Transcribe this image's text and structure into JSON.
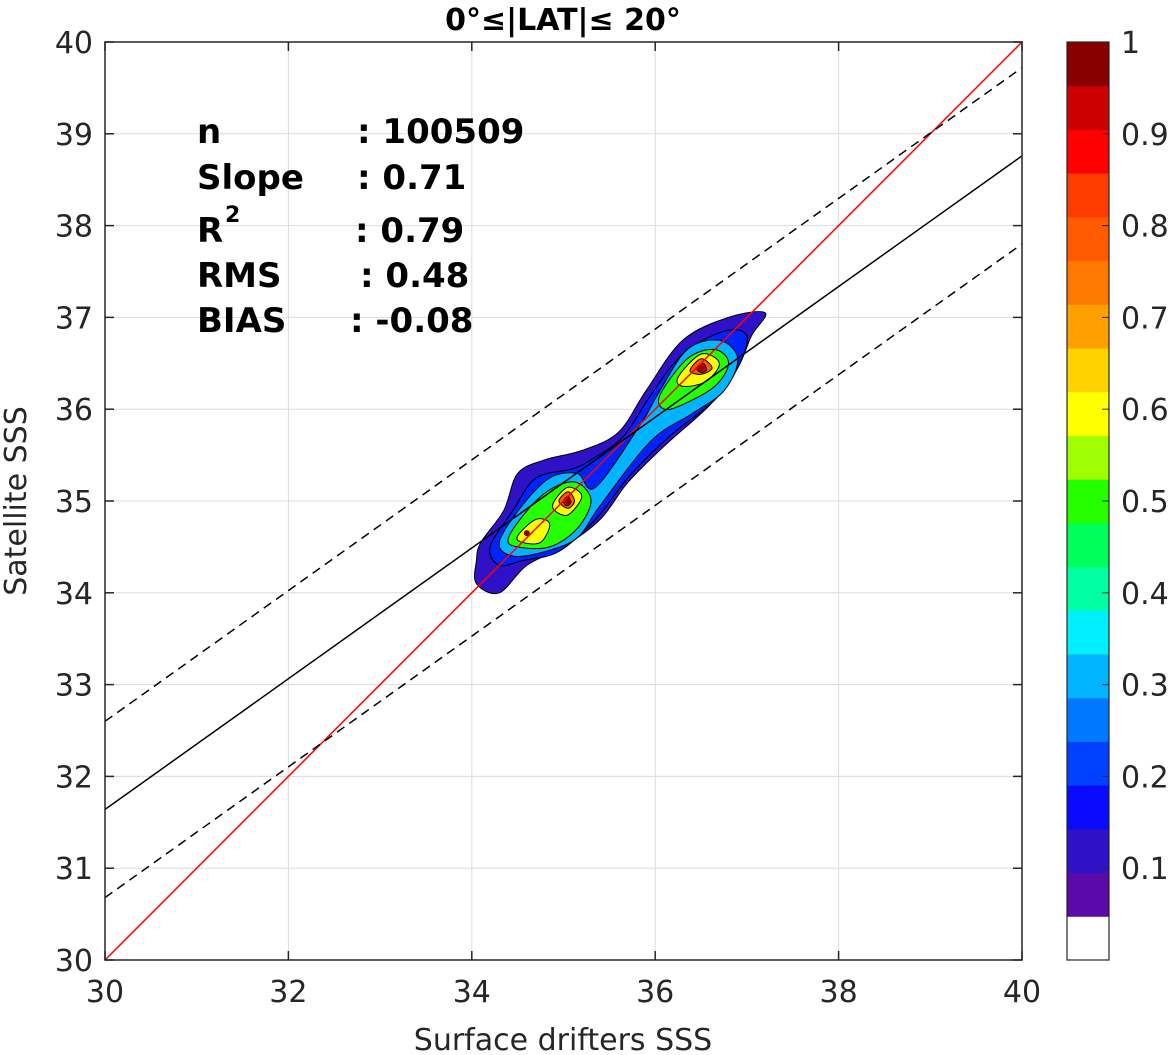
{
  "chart_data": {
    "type": "contour",
    "title": "0°≤|LAT|≤ 20°",
    "xlabel": "Surface drifters SSS",
    "ylabel": "Satellite SSS",
    "xlim": [
      30,
      40
    ],
    "ylim": [
      30,
      40
    ],
    "xticks": [
      "30",
      "32",
      "34",
      "36",
      "38",
      "40"
    ],
    "yticks": [
      "30",
      "31",
      "32",
      "33",
      "34",
      "35",
      "36",
      "37",
      "38",
      "39",
      "40"
    ],
    "grid": true,
    "stats": [
      {
        "label": "n",
        "value": ": 100509"
      },
      {
        "label": "Slope",
        "value": ": 0.71"
      },
      {
        "label": "R",
        "sup": "2",
        "value": ": 0.79"
      },
      {
        "label": "RMS",
        "value": ": 0.48"
      },
      {
        "label": "BIAS",
        "value": ": -0.08"
      }
    ],
    "lines": [
      {
        "kind": "identity",
        "color": "#ff0000",
        "style": "solid",
        "slope": 1.0,
        "intercept": 0.0
      },
      {
        "kind": "regression",
        "color": "#000000",
        "style": "solid",
        "slope": 0.712,
        "intercept": 10.28
      },
      {
        "kind": "regression-upper",
        "color": "#000000",
        "style": "dashed",
        "slope": 0.712,
        "intercept": 11.24
      },
      {
        "kind": "regression-lower",
        "color": "#000000",
        "style": "dashed",
        "slope": 0.712,
        "intercept": 9.32
      }
    ],
    "density_peaks": [
      {
        "x": 36.5,
        "y": 36.45,
        "value": 0.92
      },
      {
        "x": 35.05,
        "y": 35.0,
        "value": 0.95
      },
      {
        "x": 34.6,
        "y": 34.65,
        "value": 0.75
      }
    ],
    "contour_levels": [
      {
        "level": 0.05,
        "color": "#2f12c8",
        "path": [
          [
            34.1,
            34.55
          ],
          [
            34.35,
            34.9
          ],
          [
            34.5,
            35.3
          ],
          [
            34.8,
            35.45
          ],
          [
            35.2,
            35.55
          ],
          [
            35.6,
            35.75
          ],
          [
            35.9,
            36.2
          ],
          [
            36.3,
            36.75
          ],
          [
            36.8,
            37.0
          ],
          [
            37.2,
            37.05
          ],
          [
            37.05,
            36.8
          ],
          [
            36.9,
            36.45
          ],
          [
            36.6,
            36.05
          ],
          [
            36.1,
            35.6
          ],
          [
            35.7,
            35.2
          ],
          [
            35.4,
            34.8
          ],
          [
            35.0,
            34.5
          ],
          [
            34.6,
            34.3
          ],
          [
            34.3,
            34.0
          ],
          [
            34.05,
            34.1
          ],
          [
            34.05,
            34.35
          ]
        ]
      },
      {
        "level": 0.2,
        "color": "#0022ff",
        "path": [
          [
            34.2,
            34.5
          ],
          [
            34.45,
            34.9
          ],
          [
            34.7,
            35.25
          ],
          [
            35.1,
            35.35
          ],
          [
            35.3,
            35.45
          ],
          [
            35.65,
            35.7
          ],
          [
            35.95,
            36.15
          ],
          [
            36.3,
            36.6
          ],
          [
            36.75,
            36.85
          ],
          [
            37.0,
            36.8
          ],
          [
            36.9,
            36.45
          ],
          [
            36.65,
            36.1
          ],
          [
            36.15,
            35.7
          ],
          [
            35.7,
            35.25
          ],
          [
            35.35,
            34.8
          ],
          [
            34.95,
            34.45
          ],
          [
            34.55,
            34.35
          ],
          [
            34.3,
            34.3
          ]
        ]
      },
      {
        "level": 0.3,
        "color": "#00b4ff",
        "path": [
          [
            34.3,
            34.55
          ],
          [
            34.55,
            34.95
          ],
          [
            34.85,
            35.25
          ],
          [
            35.15,
            35.3
          ],
          [
            35.35,
            35.15
          ],
          [
            35.85,
            35.85
          ],
          [
            36.05,
            36.2
          ],
          [
            36.35,
            36.65
          ],
          [
            36.7,
            36.75
          ],
          [
            36.9,
            36.55
          ],
          [
            36.75,
            36.2
          ],
          [
            36.4,
            35.95
          ],
          [
            35.95,
            35.65
          ],
          [
            35.4,
            34.95
          ],
          [
            35.15,
            34.6
          ],
          [
            34.8,
            34.45
          ],
          [
            34.45,
            34.4
          ]
        ]
      },
      {
        "level": 0.45,
        "color": "#26ff00",
        "path": [
          [
            34.4,
            34.6
          ],
          [
            34.65,
            34.95
          ],
          [
            34.9,
            35.15
          ],
          [
            35.15,
            35.2
          ],
          [
            35.3,
            35.0
          ],
          [
            35.15,
            34.7
          ],
          [
            34.85,
            34.5
          ],
          [
            34.5,
            34.5
          ]
        ]
      },
      {
        "level": 0.45,
        "color": "#26ff00",
        "path": [
          [
            36.05,
            36.15
          ],
          [
            36.35,
            36.55
          ],
          [
            36.65,
            36.65
          ],
          [
            36.8,
            36.5
          ],
          [
            36.65,
            36.25
          ],
          [
            36.3,
            36.05
          ],
          [
            36.1,
            36.0
          ]
        ]
      },
      {
        "level": 0.6,
        "color": "#ffff00",
        "path": [
          [
            34.5,
            34.62
          ],
          [
            34.7,
            34.8
          ],
          [
            34.85,
            34.75
          ],
          [
            34.75,
            34.55
          ],
          [
            34.55,
            34.55
          ]
        ]
      },
      {
        "level": 0.6,
        "color": "#ffff00",
        "path": [
          [
            34.9,
            35.0
          ],
          [
            35.05,
            35.15
          ],
          [
            35.2,
            35.05
          ],
          [
            35.05,
            34.85
          ],
          [
            34.9,
            34.9
          ]
        ]
      },
      {
        "level": 0.6,
        "color": "#ffff00",
        "path": [
          [
            36.25,
            36.35
          ],
          [
            36.5,
            36.6
          ],
          [
            36.7,
            36.5
          ],
          [
            36.55,
            36.3
          ],
          [
            36.3,
            36.25
          ]
        ]
      },
      {
        "level": 0.8,
        "color": "#ff5a00",
        "path": [
          [
            34.95,
            35.0
          ],
          [
            35.05,
            35.1
          ],
          [
            35.12,
            35.0
          ],
          [
            35.05,
            34.92
          ]
        ]
      },
      {
        "level": 0.8,
        "color": "#ff5a00",
        "path": [
          [
            36.38,
            36.42
          ],
          [
            36.5,
            36.55
          ],
          [
            36.62,
            36.45
          ],
          [
            36.5,
            36.38
          ]
        ]
      },
      {
        "level": 0.9,
        "color": "#cc0000",
        "path": [
          [
            35.0,
            35.0
          ],
          [
            35.05,
            35.05
          ],
          [
            35.08,
            34.98
          ],
          [
            35.03,
            34.95
          ]
        ]
      },
      {
        "level": 0.9,
        "color": "#cc0000",
        "path": [
          [
            36.45,
            36.45
          ],
          [
            36.52,
            36.5
          ],
          [
            36.56,
            36.43
          ],
          [
            36.5,
            36.4
          ]
        ]
      }
    ],
    "colorbar": {
      "labels": [
        "0.1",
        "0.2",
        "0.3",
        "0.4",
        "0.5",
        "0.6",
        "0.7",
        "0.8",
        "0.9",
        "1"
      ],
      "label_values": [
        0.1,
        0.2,
        0.3,
        0.4,
        0.5,
        0.6,
        0.7,
        0.8,
        0.9,
        1.0
      ],
      "colors": [
        "#ffffff",
        "#5a0aa8",
        "#2f12c8",
        "#0a0aff",
        "#0040ff",
        "#0078ff",
        "#00b4ff",
        "#00f0ff",
        "#00ffa0",
        "#00ff5a",
        "#26ff00",
        "#a0ff00",
        "#ffff00",
        "#ffd200",
        "#ffa000",
        "#ff7800",
        "#ff5a00",
        "#ff3c00",
        "#ff0000",
        "#cc0000",
        "#880000"
      ]
    }
  }
}
